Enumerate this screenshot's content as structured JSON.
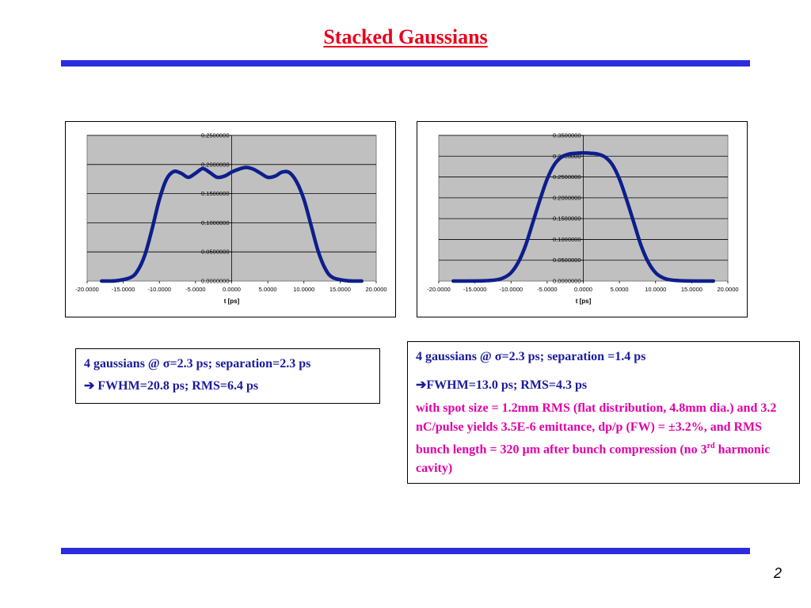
{
  "slide": {
    "title": "Stacked Gaussians",
    "page_number": "2",
    "colors": {
      "title": "#e8001c",
      "rule": "#2b2be0",
      "curve": "#0d1e8c",
      "plot_bg": "#c0c0c0",
      "text_navy": "#1a1a9e",
      "text_magenta": "#e000a8"
    }
  },
  "chart_data": [
    {
      "type": "line",
      "xlabel": "t [ps]",
      "ylabel": "",
      "title": "",
      "xlim": [
        -20,
        20
      ],
      "ylim": [
        0,
        0.25
      ],
      "x_ticks": [
        "-20.0000",
        "-15.0000",
        "-10.0000",
        "-5.0000",
        "0.0000",
        "5.0000",
        "10.0000",
        "15.0000",
        "20.0000"
      ],
      "y_ticks": [
        "0.0000000",
        "0.0500000",
        "0.1000000",
        "0.1500000",
        "0.2000000",
        "0.2500000"
      ],
      "grid": "horizontal",
      "x_range_plotted": [
        -18,
        18
      ],
      "x": [
        -18,
        -16,
        -14,
        -13,
        -12,
        -11,
        -10,
        -9,
        -8,
        -7,
        -6,
        -5,
        -4,
        -3,
        -2,
        -1,
        0,
        1,
        2,
        3,
        4,
        5,
        6,
        7,
        8,
        9,
        10,
        11,
        12,
        13,
        14,
        16,
        18
      ],
      "y": [
        0.0,
        0.0005,
        0.006,
        0.018,
        0.045,
        0.09,
        0.14,
        0.175,
        0.188,
        0.185,
        0.178,
        0.185,
        0.193,
        0.186,
        0.178,
        0.18,
        0.187,
        0.192,
        0.195,
        0.192,
        0.185,
        0.178,
        0.18,
        0.187,
        0.186,
        0.17,
        0.14,
        0.095,
        0.05,
        0.02,
        0.006,
        0.0005,
        0.0
      ]
    },
    {
      "type": "line",
      "xlabel": "t [ps]",
      "ylabel": "",
      "title": "",
      "xlim": [
        -20,
        20
      ],
      "ylim": [
        0,
        0.35
      ],
      "x_ticks": [
        "-20.0000",
        "-15.0000",
        "-10.0000",
        "-5.0000",
        "0.0000",
        "5.0000",
        "10.0000",
        "15.0000",
        "20.0000"
      ],
      "y_ticks": [
        "0.0000000",
        "0.0500000",
        "0.1000000",
        "0.1500000",
        "0.2000000",
        "0.2500000",
        "0.3000000",
        "0.3500000"
      ],
      "grid": "horizontal",
      "x_range_plotted": [
        -18,
        18
      ],
      "x": [
        -18,
        -14,
        -12,
        -11,
        -10,
        -9,
        -8,
        -7,
        -6,
        -5,
        -4,
        -3,
        -2,
        -1,
        0,
        1,
        2,
        3,
        4,
        5,
        6,
        7,
        8,
        9,
        10,
        11,
        12,
        14,
        18
      ],
      "y": [
        0.0,
        0.0005,
        0.003,
        0.008,
        0.02,
        0.045,
        0.085,
        0.14,
        0.195,
        0.245,
        0.28,
        0.298,
        0.305,
        0.307,
        0.308,
        0.307,
        0.305,
        0.298,
        0.28,
        0.245,
        0.195,
        0.14,
        0.085,
        0.045,
        0.02,
        0.008,
        0.003,
        0.0005,
        0.0
      ]
    }
  ],
  "box_left": {
    "line1": "4 gaussians @ σ=2.3 ps; separation=2.3 ps",
    "arrow": "➔",
    "line2": " FWHM=20.8 ps; RMS=6.4 ps"
  },
  "box_right": {
    "line1": "4 gaussians @ σ=2.3 ps; separation =1.4 ps",
    "arrow": "➔",
    "line2": "FWHM=13.0 ps; RMS=4.3 ps",
    "para_a": "with spot size = 1.2mm RMS (flat distribution, 4.8mm dia.) and 3.2 nC/pulse yields 3.5E-6 emittance, dp/p (FW) = ±3.2%, and RMS bunch length = 320 µm after bunch compression (no 3",
    "para_sup": "rd",
    "para_b": " harmonic cavity)"
  }
}
